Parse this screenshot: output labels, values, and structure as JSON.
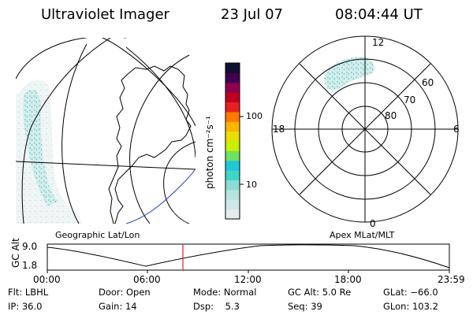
{
  "header": {
    "instrument": "Ultraviolet Imager",
    "date": "23 Jul 07",
    "time": "08:04:44 UT"
  },
  "colorbar": {
    "label": "photon cm⁻²s⁻¹",
    "ticks": [
      "100",
      "10"
    ],
    "colors": [
      "#e4eced",
      "#cfe8e6",
      "#b6e4dc",
      "#8adcd4",
      "#40d6c6",
      "#20c8d8",
      "#70e060",
      "#c8f000",
      "#e8e000",
      "#ffb400",
      "#ff7800",
      "#e82020",
      "#c00020",
      "#900050",
      "#400050",
      "#101030"
    ]
  },
  "left_map": {
    "projection_label": "Geographic Lat/Lon"
  },
  "polar_map": {
    "projection_label": "Apex MLat/MLT",
    "mlt_labels": {
      "top": "12",
      "left": "18",
      "right": "6",
      "bottom": "0"
    },
    "lat_labels": [
      "60",
      "70",
      "80"
    ]
  },
  "altitude_plot": {
    "ylabel": "GC Alt",
    "yticks": [
      "9.0",
      "1.8"
    ],
    "xticks": [
      "00:00",
      "06:00",
      "12:00",
      "18:00",
      "23:59"
    ],
    "marker_time": "08:04:44"
  },
  "footer": {
    "filter": "Flt: LBHL",
    "ip": "IP: 36.0",
    "door": "Door: Open",
    "gain": "Gain: 14",
    "mode": "Mode: Normal",
    "dsp": "Dsp:    5.3",
    "gc_alt": "GC Alt: 5.0 Re",
    "seq": "Seq: 39",
    "glat": "GLat: −66.0",
    "glon": "GLon: 103.2"
  }
}
